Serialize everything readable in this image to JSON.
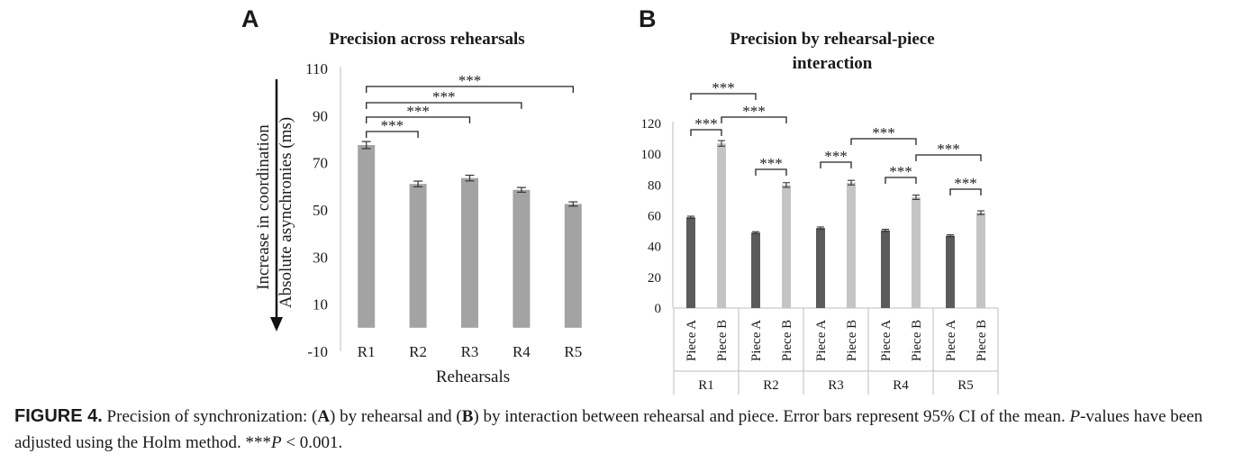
{
  "figure": {
    "caption": {
      "lead": "FIGURE 4.",
      "p1": " Precision of synchronization: (",
      "a": "A",
      "p2": ") by rehearsal and (",
      "b": "B",
      "p3": ") by interaction between rehearsal and piece. Error bars represent 95% CI of the mean. ",
      "pvar": "P",
      "p4": "-values have been adjusted using the Holm method. ***",
      "pvar2": "P",
      "p5": " < 0.001."
    }
  },
  "colors": {
    "bar_a": "#a3a3a3",
    "piece_a": "#5b5b5b",
    "piece_b": "#c4c4c4",
    "text": "#1a1a1a"
  },
  "chart_data": [
    {
      "type": "bar",
      "panel": "A",
      "title": "Precision across rehearsals",
      "xlabel": "Rehearsals",
      "ylabel": "Absolute asynchronies (ms)",
      "arrow_label": "Increase in coordination",
      "ylim": [
        -10,
        110
      ],
      "yticks": [
        -10,
        10,
        30,
        50,
        70,
        90,
        110
      ],
      "categories": [
        "R1",
        "R2",
        "R3",
        "R4",
        "R5"
      ],
      "values": [
        77.5,
        61,
        63.5,
        58.5,
        52.5
      ],
      "errors": [
        1.5,
        1.2,
        1.2,
        1.0,
        0.9
      ],
      "significance": [
        {
          "from": 0,
          "to": 1,
          "label": "***"
        },
        {
          "from": 0,
          "to": 2,
          "label": "***"
        },
        {
          "from": 0,
          "to": 3,
          "label": "***"
        },
        {
          "from": 0,
          "to": 4,
          "label": "***"
        }
      ]
    },
    {
      "type": "bar",
      "panel": "B",
      "title_line1": "Precision by rehearsal-piece",
      "title_line2": "interaction",
      "ylim": [
        0,
        120
      ],
      "yticks": [
        0,
        20,
        40,
        60,
        80,
        100,
        120
      ],
      "categories": [
        "R1",
        "R2",
        "R3",
        "R4",
        "R5"
      ],
      "subcategories": [
        "Piece A",
        "Piece B"
      ],
      "series": [
        {
          "name": "Piece A",
          "values": [
            59,
            49,
            52,
            50.5,
            47
          ],
          "errors": [
            0.7,
            0.6,
            0.7,
            0.7,
            0.6
          ]
        },
        {
          "name": "Piece B",
          "values": [
            107,
            80,
            81.5,
            72,
            62
          ],
          "errors": [
            1.8,
            1.5,
            1.5,
            1.4,
            1.2
          ]
        }
      ],
      "significance": [
        {
          "from": "R1-Piece A",
          "to": "R2-Piece A",
          "label": "***"
        },
        {
          "from": "R1-Piece A",
          "to": "R1-Piece B",
          "label": "***"
        },
        {
          "from": "R1-Piece B",
          "to": "R2-Piece B",
          "label": "***"
        },
        {
          "from": "R2-Piece A",
          "to": "R2-Piece B",
          "label": "***"
        },
        {
          "from": "R3-Piece A",
          "to": "R3-Piece B",
          "label": "***"
        },
        {
          "from": "R3-Piece B",
          "to": "R4-Piece B",
          "label": "***"
        },
        {
          "from": "R4-Piece A",
          "to": "R4-Piece B",
          "label": "***"
        },
        {
          "from": "R4-Piece B",
          "to": "R5-Piece B",
          "label": "***"
        },
        {
          "from": "R5-Piece A",
          "to": "R5-Piece B",
          "label": "***"
        }
      ]
    }
  ]
}
